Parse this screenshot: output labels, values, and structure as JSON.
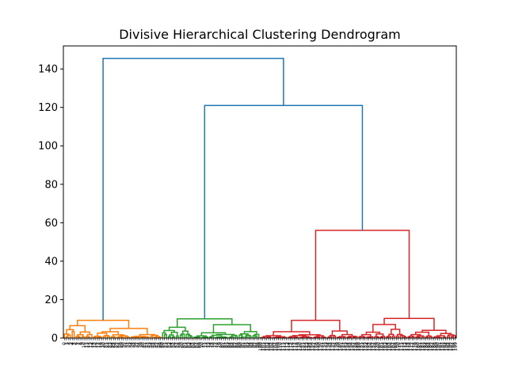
{
  "chart_data": {
    "type": "dendrogram",
    "title": "Divisive Hierarchical Clustering Dendrogram",
    "xlabel": "",
    "ylabel": "",
    "ylim": [
      0,
      152
    ],
    "yticks": [
      0,
      20,
      40,
      60,
      80,
      100,
      120,
      140
    ],
    "leaf_count": 200,
    "clusters": [
      {
        "color": "#ff7f0e",
        "leaf_range": [
          0,
          50
        ],
        "max_height": 9.2
      },
      {
        "color": "#2ca02c",
        "leaf_range": [
          50,
          100
        ],
        "max_height": 10.0
      },
      {
        "color": "#d62728",
        "leaf_range": [
          100,
          200
        ],
        "max_height": 56.0
      }
    ],
    "links": [
      {
        "color": "#1f77b4",
        "left_height": 9.2,
        "right_height": 121.0,
        "height": 145.5
      },
      {
        "color": "#1f77b4",
        "left_height": 10.0,
        "right_height": 56.0,
        "height": 121.0
      },
      {
        "color": "#d62728",
        "left_height": 9.2,
        "right_height": 10.2,
        "height": 56.0
      }
    ],
    "grid": false,
    "legend": "none"
  }
}
